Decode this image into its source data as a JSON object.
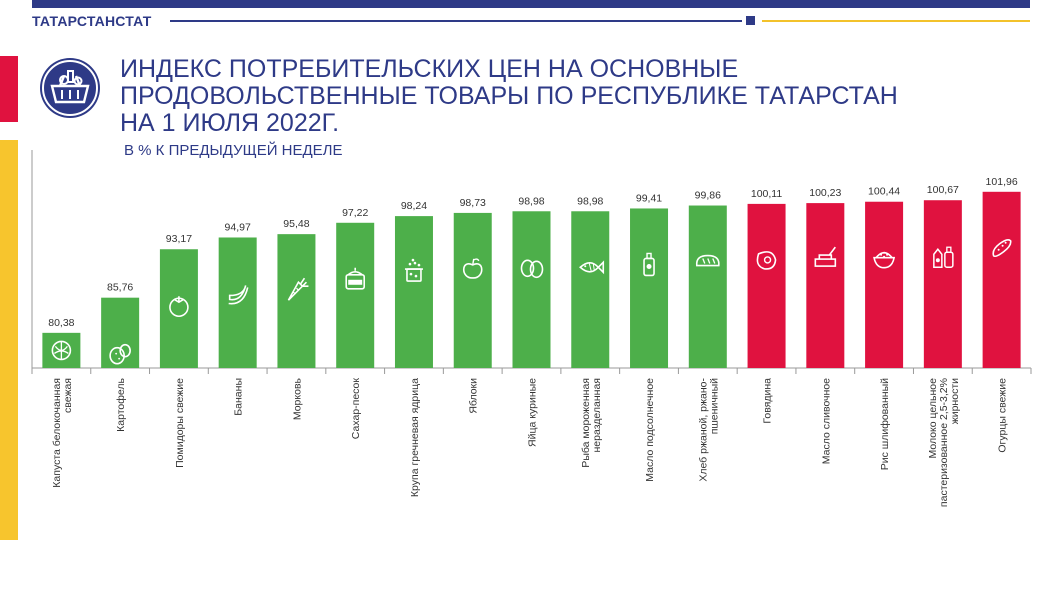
{
  "header": {
    "org": "ТАТАРСТАНСТАТ",
    "title_lines": [
      "ИНДЕКС ПОТРЕБИТЕЛЬСКИХ ЦЕН НА ОСНОВНЫЕ",
      "ПРОДОВОЛЬСТВЕННЫЕ ТОВАРЫ ПО РЕСПУБЛИКЕ ТАТАРСТАН",
      "НА 1 ИЮЛЯ 2022г."
    ],
    "subtitle": "В % К ПРЕДЫДУЩЕЙ НЕДЕЛЕ"
  },
  "colors": {
    "brand_blue": "#2e3a87",
    "decrease_green": "#4daf4a",
    "increase_red": "#e0123f",
    "accent_yellow": "#f7c52d"
  },
  "chart_data": {
    "type": "bar",
    "title": "В % К ПРЕДЫДУЩЕЙ НЕДЕЛЕ",
    "xlabel": "",
    "ylabel": "",
    "ylim": [
      75,
      103
    ],
    "grid": false,
    "categories": [
      "Капуста белокочанная свежая",
      "Картофель",
      "Помидоры свежие",
      "Бананы",
      "Морковь",
      "Сахар-песок",
      "Крупа гречневая ядрица",
      "Яблоки",
      "Яйца куриные",
      "Рыба мороженная неразделанная",
      "Масло подсолнечное",
      "Хлеб ржаной, ржано-пшеничный",
      "Говядина",
      "Масло сливочное",
      "Рис шлифованный",
      "Молоко цельное пастеризованное 2,5-3,2% жирности",
      "Огурцы свежие"
    ],
    "category_lines": [
      [
        "Капуста белокочанная",
        "свежая"
      ],
      [
        "Картофель"
      ],
      [
        "Помидоры свежие"
      ],
      [
        "Бананы"
      ],
      [
        "Морковь"
      ],
      [
        "Сахар-песок"
      ],
      [
        "Крупа гречневая ядрица"
      ],
      [
        "Яблоки"
      ],
      [
        "Яйца куриные"
      ],
      [
        "Рыба мороженная",
        "неразделанная"
      ],
      [
        "Масло подсолнечное"
      ],
      [
        "Хлеб ржаной, ржано-",
        "пшеничный"
      ],
      [
        "Говядина"
      ],
      [
        "Масло  сливочное"
      ],
      [
        "Рис шлифованный"
      ],
      [
        "Молоко цельное",
        "пастеризованное 2,5-3,2%",
        "жирности"
      ],
      [
        "Огурцы свежие"
      ]
    ],
    "values": [
      80.38,
      85.76,
      93.17,
      94.97,
      95.48,
      97.22,
      98.24,
      98.73,
      98.98,
      98.98,
      99.41,
      99.86,
      100.11,
      100.23,
      100.44,
      100.67,
      101.96
    ],
    "value_labels": [
      "80,38",
      "85,76",
      "93,17",
      "94,97",
      "95,48",
      "97,22",
      "98,24",
      "98,73",
      "98,98",
      "98,98",
      "99,41",
      "99,86",
      "100,11",
      "100,23",
      "100,44",
      "100,67",
      "101,96"
    ],
    "icons": [
      "cabbage-icon",
      "potato-icon",
      "tomato-icon",
      "banana-icon",
      "carrot-icon",
      "sugar-jar-icon",
      "buckwheat-pot-icon",
      "apple-icon",
      "eggs-icon",
      "fish-icon",
      "oil-bottle-icon",
      "bread-icon",
      "beef-icon",
      "butter-icon",
      "rice-bowl-icon",
      "milk-icon",
      "cucumber-icon"
    ]
  }
}
